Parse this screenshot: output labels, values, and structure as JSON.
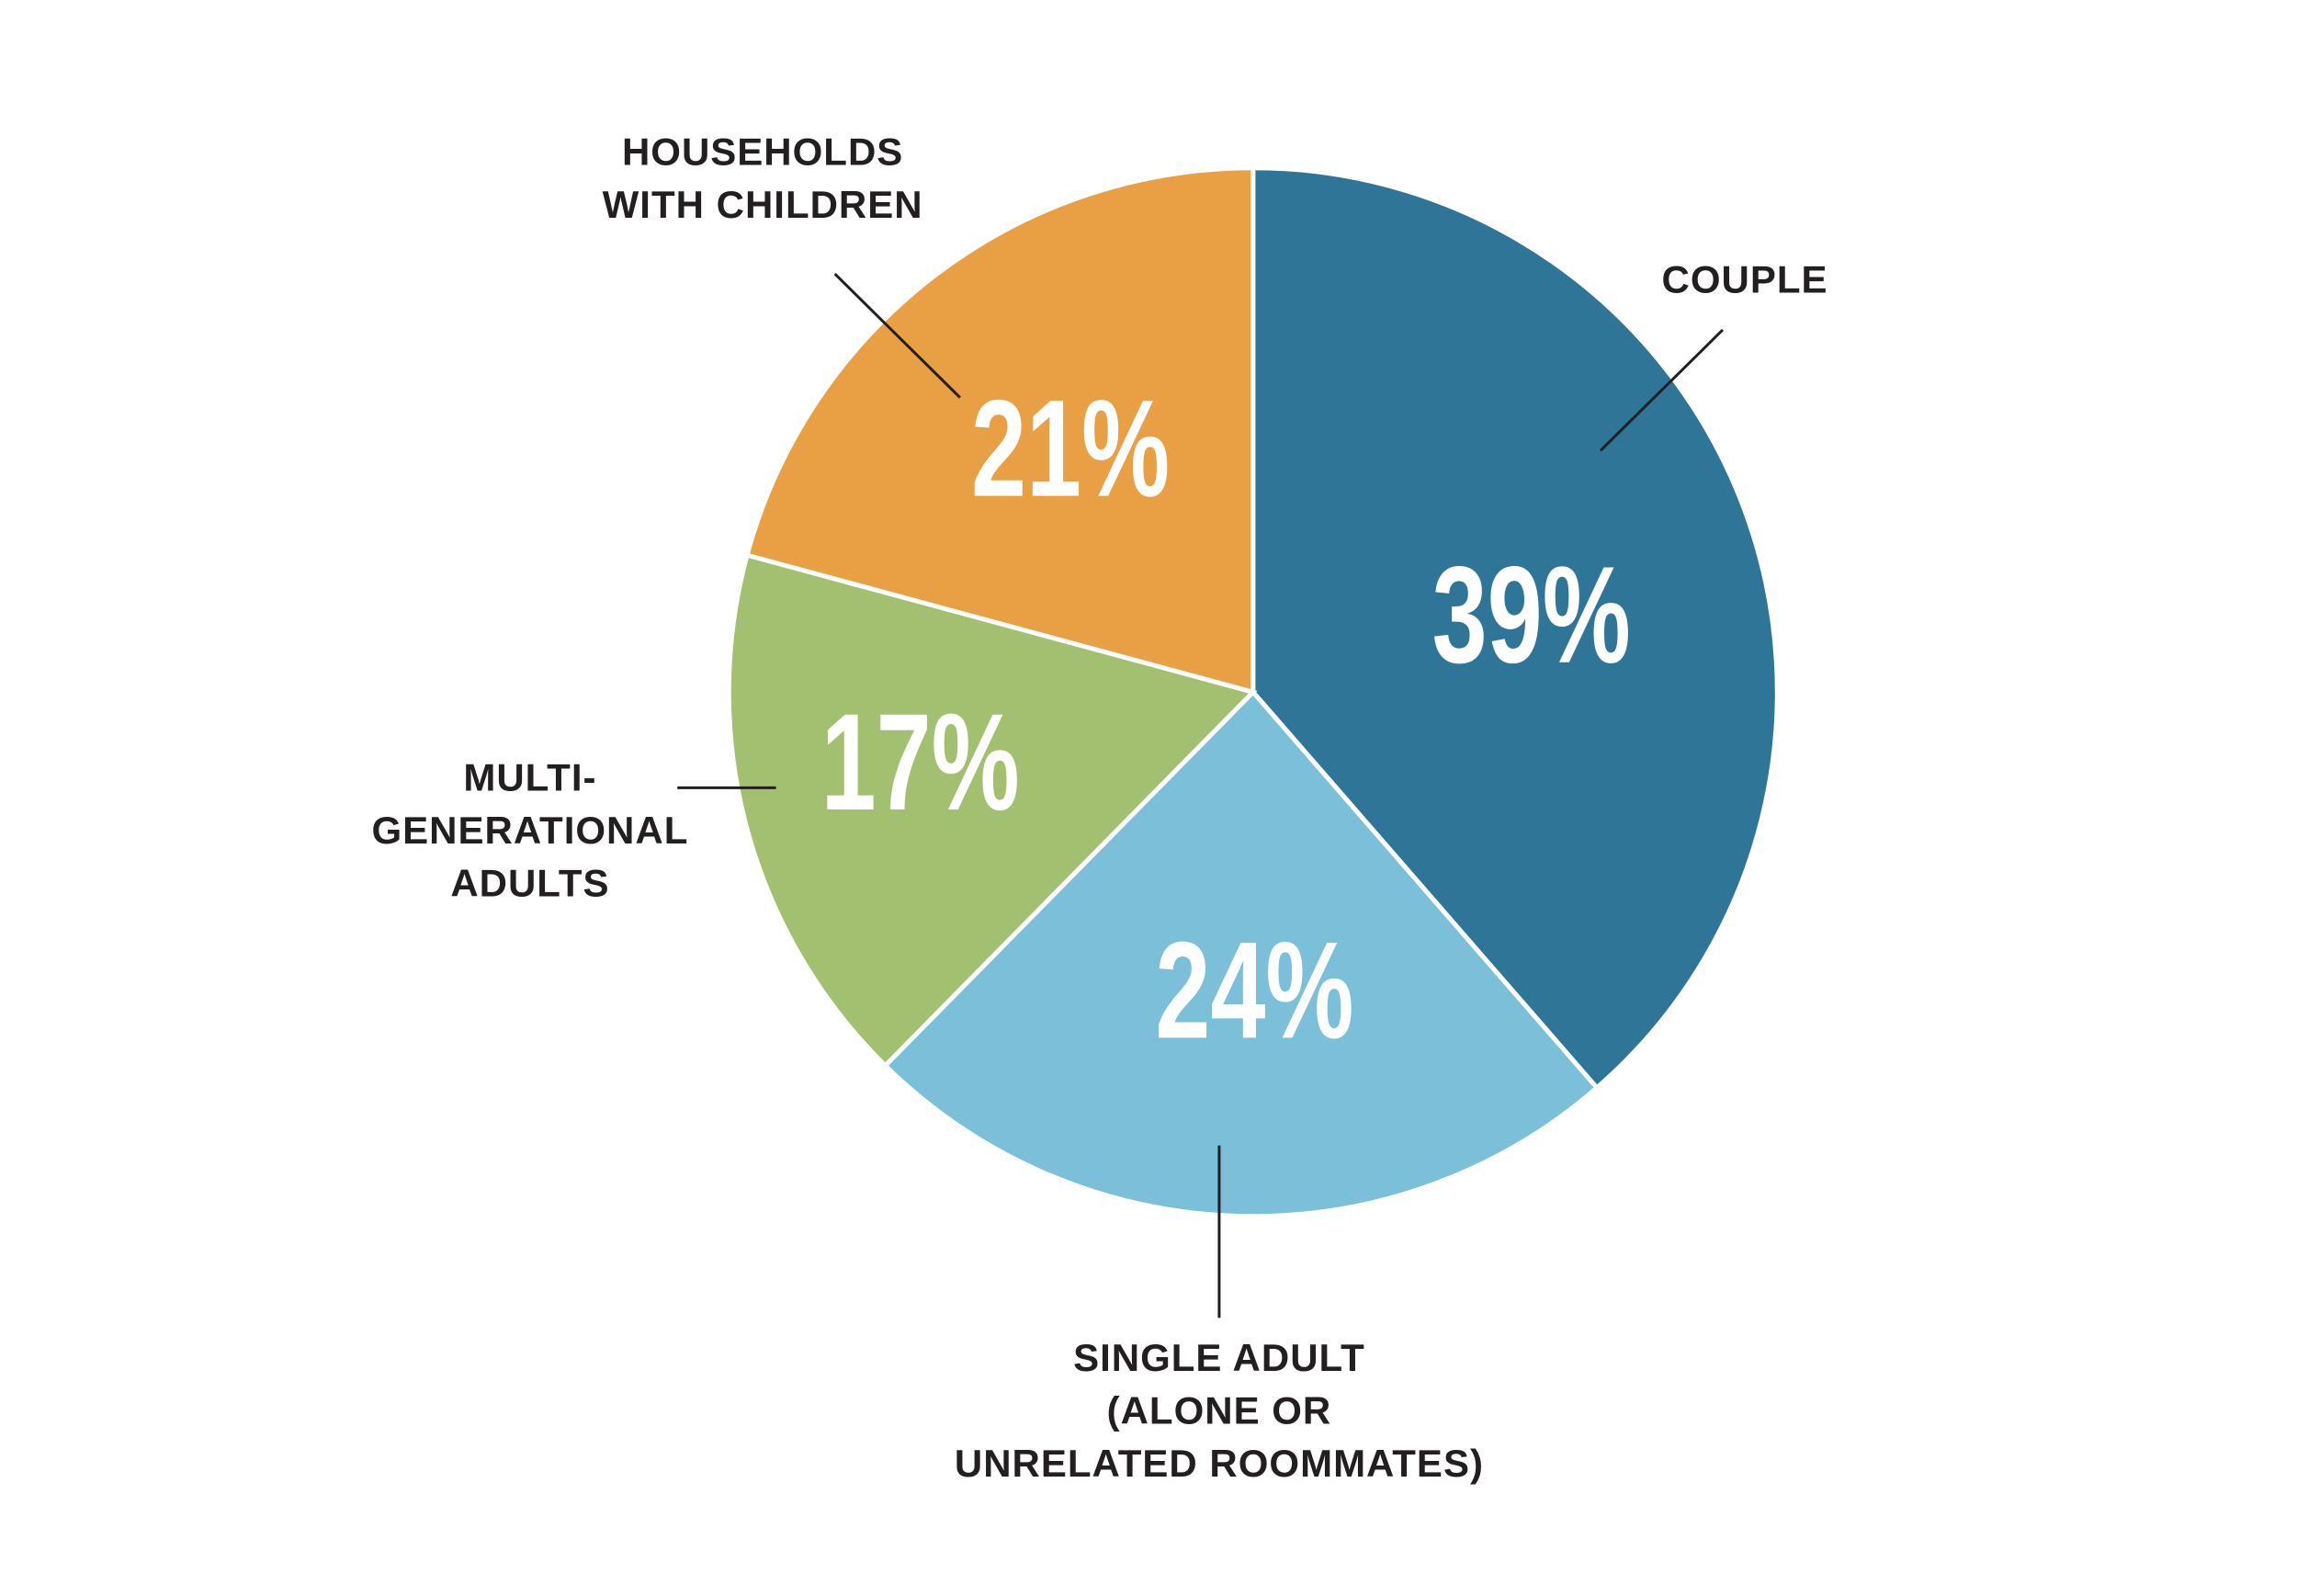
{
  "chart_data": {
    "type": "pie",
    "categories": [
      "COUPLE",
      "SINGLE ADULT\n(ALONE OR\nUNRELATED ROOMMATES)",
      "MULTI-\nGENERATIONAL\nADULTS",
      "HOUSEHOLDS\nWITH CHILDREN"
    ],
    "values": [
      39,
      24,
      17,
      21
    ],
    "value_labels": [
      "39%",
      "24%",
      "17%",
      "21%"
    ],
    "colors": [
      "#2e7597",
      "#7bbfd9",
      "#a2c070",
      "#e9a045"
    ]
  }
}
